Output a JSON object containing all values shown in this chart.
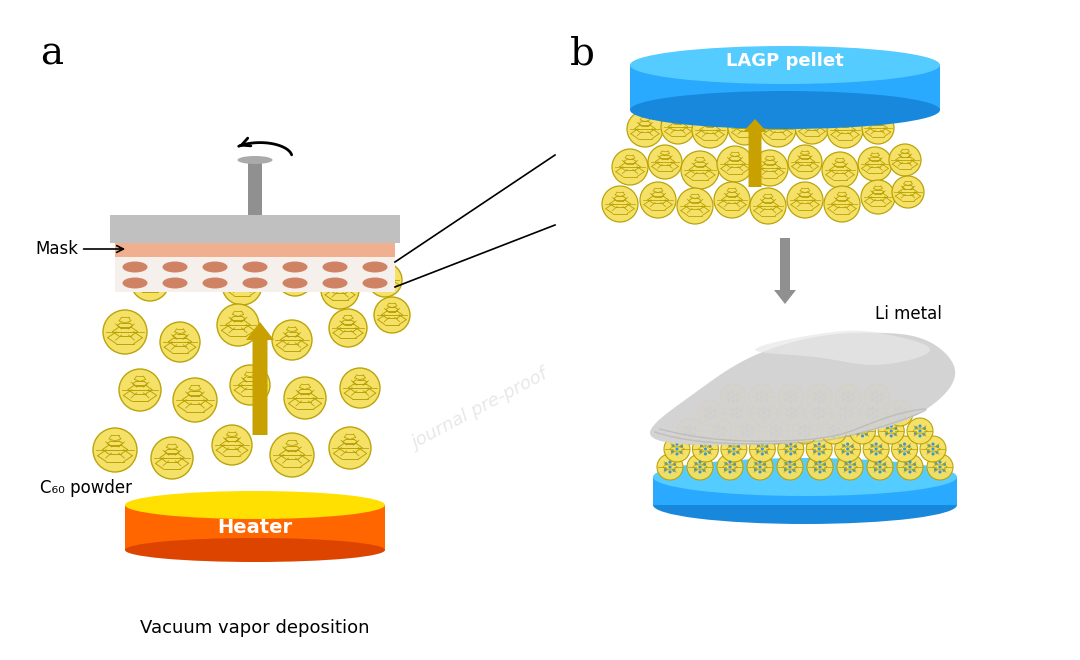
{
  "bg_color": "#ffffff",
  "label_a": "a",
  "label_b": "b",
  "label_fontsize": 28,
  "heater_color_top": "#FF8800",
  "heater_color_mid": "#FF6600",
  "heater_color_bot": "#DD4400",
  "heater_top_color": "#FFE000",
  "powder_label": "C₆₀ powder",
  "heater_label": "Heater",
  "vacuum_label": "Vacuum vapor deposition",
  "mask_label": "Mask",
  "lagp_label": "LAGP pellet",
  "li_metal_label": "Li metal",
  "c60_edge_color": "#b8a000",
  "c60_fill_color": "#f5e060",
  "c60_fill_color2": "#4db8ff",
  "arrow_color": "#c8a000",
  "lagp_color": "#29aaff",
  "lagp_dark": "#1888dd",
  "lagp_light": "#55ccff",
  "li_metal_color": "#c8c8c8",
  "li_metal_dark": "#a0a0a0",
  "li_metal_light": "#e8e8e8",
  "gray_arrow_color": "#909090",
  "mask_gray": "#c0c0c0",
  "mask_gray_dark": "#a0a0a0",
  "mask_pink": "#f0b090",
  "mask_white": "#f5f0ec",
  "hole_color": "#cc7755",
  "hole_color_dark": "#aa5533",
  "shaft_color": "#909090"
}
